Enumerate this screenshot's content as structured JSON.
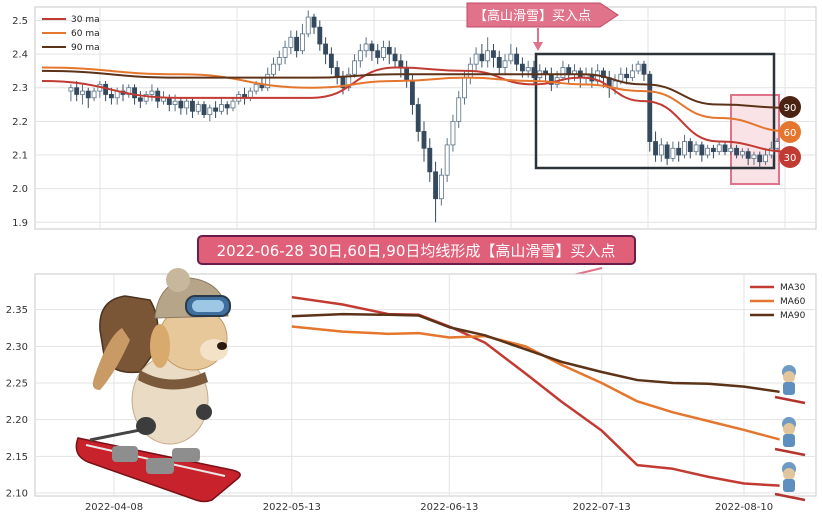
{
  "annotations": {
    "top_arrow_label": "【高山滑雪】买入点",
    "banner": "2022-06-28 30日,60日,90日均线形成【高山滑雪】买入点",
    "badges": [
      "90",
      "60",
      "30"
    ]
  },
  "colors": {
    "ma30": "#c23b33",
    "ma60": "#e5762d",
    "ma90": "#5c3318",
    "candle": "#34495e",
    "box": "#2c3338",
    "highlight_fill": "#f7d9de",
    "highlight_edge": "#e0728a",
    "banner_fill": "#e0607a",
    "banner_edge": "#6a1d4a",
    "badge90": "#4a2313",
    "badge60": "#e5762d",
    "badge30": "#c23b33"
  },
  "chart_data": [
    {
      "type": "candlestick",
      "y_ticks": [
        "1.9",
        "2.0",
        "2.1",
        "2.2",
        "2.3",
        "2.4",
        "2.5"
      ],
      "ylim": [
        1.88,
        2.54
      ],
      "grid": true,
      "legend": {
        "position": "top-left",
        "entries": [
          "30 ma",
          "60 ma",
          "90 ma"
        ]
      },
      "x_start": "2022-03-01",
      "x_end": "2022-08-17",
      "candles": [
        [
          2.29,
          2.3,
          2.26,
          2.31
        ],
        [
          2.3,
          2.28,
          2.26,
          2.32
        ],
        [
          2.28,
          2.29,
          2.25,
          2.31
        ],
        [
          2.29,
          2.27,
          2.24,
          2.3
        ],
        [
          2.27,
          2.29,
          2.26,
          2.3
        ],
        [
          2.29,
          2.31,
          2.27,
          2.32
        ],
        [
          2.31,
          2.28,
          2.26,
          2.32
        ],
        [
          2.28,
          2.27,
          2.25,
          2.3
        ],
        [
          2.27,
          2.29,
          2.25,
          2.3
        ],
        [
          2.29,
          2.28,
          2.26,
          2.31
        ],
        [
          2.28,
          2.3,
          2.27,
          2.31
        ],
        [
          2.3,
          2.27,
          2.25,
          2.31
        ],
        [
          2.27,
          2.26,
          2.24,
          2.29
        ],
        [
          2.26,
          2.28,
          2.25,
          2.29
        ],
        [
          2.28,
          2.29,
          2.26,
          2.31
        ],
        [
          2.29,
          2.26,
          2.24,
          2.3
        ],
        [
          2.26,
          2.27,
          2.25,
          2.29
        ],
        [
          2.27,
          2.25,
          2.23,
          2.28
        ],
        [
          2.25,
          2.26,
          2.23,
          2.28
        ],
        [
          2.26,
          2.24,
          2.22,
          2.27
        ],
        [
          2.24,
          2.26,
          2.22,
          2.27
        ],
        [
          2.26,
          2.23,
          2.21,
          2.27
        ],
        [
          2.23,
          2.25,
          2.22,
          2.26
        ],
        [
          2.25,
          2.22,
          2.21,
          2.26
        ],
        [
          2.22,
          2.24,
          2.2,
          2.25
        ],
        [
          2.24,
          2.23,
          2.21,
          2.26
        ],
        [
          2.23,
          2.25,
          2.22,
          2.27
        ],
        [
          2.25,
          2.24,
          2.22,
          2.26
        ],
        [
          2.24,
          2.26,
          2.23,
          2.27
        ],
        [
          2.26,
          2.28,
          2.25,
          2.29
        ],
        [
          2.28,
          2.27,
          2.25,
          2.3
        ],
        [
          2.27,
          2.29,
          2.26,
          2.3
        ],
        [
          2.29,
          2.31,
          2.28,
          2.32
        ],
        [
          2.31,
          2.3,
          2.29,
          2.33
        ],
        [
          2.3,
          2.34,
          2.29,
          2.36
        ],
        [
          2.34,
          2.37,
          2.33,
          2.39
        ],
        [
          2.37,
          2.39,
          2.35,
          2.41
        ],
        [
          2.39,
          2.42,
          2.37,
          2.44
        ],
        [
          2.42,
          2.45,
          2.4,
          2.47
        ],
        [
          2.45,
          2.41,
          2.39,
          2.47
        ],
        [
          2.41,
          2.46,
          2.4,
          2.49
        ],
        [
          2.46,
          2.51,
          2.45,
          2.53
        ],
        [
          2.51,
          2.48,
          2.46,
          2.52
        ],
        [
          2.48,
          2.43,
          2.41,
          2.5
        ],
        [
          2.43,
          2.4,
          2.37,
          2.45
        ],
        [
          2.4,
          2.36,
          2.34,
          2.42
        ],
        [
          2.36,
          2.33,
          2.31,
          2.38
        ],
        [
          2.33,
          2.3,
          2.28,
          2.35
        ],
        [
          2.3,
          2.34,
          2.29,
          2.36
        ],
        [
          2.34,
          2.38,
          2.33,
          2.4
        ],
        [
          2.38,
          2.41,
          2.36,
          2.43
        ],
        [
          2.41,
          2.43,
          2.39,
          2.45
        ],
        [
          2.43,
          2.41,
          2.38,
          2.44
        ],
        [
          2.41,
          2.39,
          2.37,
          2.43
        ],
        [
          2.39,
          2.42,
          2.38,
          2.44
        ],
        [
          2.42,
          2.4,
          2.37,
          2.44
        ],
        [
          2.4,
          2.38,
          2.36,
          2.42
        ],
        [
          2.38,
          2.36,
          2.33,
          2.4
        ],
        [
          2.36,
          2.32,
          2.3,
          2.38
        ],
        [
          2.32,
          2.25,
          2.22,
          2.34
        ],
        [
          2.25,
          2.17,
          2.14,
          2.27
        ],
        [
          2.17,
          2.12,
          2.08,
          2.2
        ],
        [
          2.12,
          2.05,
          2.02,
          2.15
        ],
        [
          2.05,
          1.97,
          1.9,
          2.08
        ],
        [
          1.97,
          2.04,
          1.95,
          2.06
        ],
        [
          2.04,
          2.13,
          2.02,
          2.15
        ],
        [
          2.13,
          2.2,
          2.11,
          2.22
        ],
        [
          2.2,
          2.27,
          2.18,
          2.29
        ],
        [
          2.27,
          2.33,
          2.25,
          2.35
        ],
        [
          2.33,
          2.37,
          2.31,
          2.39
        ],
        [
          2.37,
          2.4,
          2.35,
          2.42
        ],
        [
          2.4,
          2.38,
          2.36,
          2.43
        ],
        [
          2.38,
          2.41,
          2.36,
          2.45
        ],
        [
          2.41,
          2.39,
          2.36,
          2.43
        ],
        [
          2.39,
          2.36,
          2.34,
          2.41
        ],
        [
          2.36,
          2.38,
          2.34,
          2.4
        ],
        [
          2.38,
          2.4,
          2.37,
          2.43
        ],
        [
          2.4,
          2.37,
          2.35,
          2.42
        ],
        [
          2.37,
          2.35,
          2.33,
          2.39
        ],
        [
          2.35,
          2.36,
          2.33,
          2.38
        ],
        [
          2.36,
          2.33,
          2.31,
          2.38
        ],
        [
          2.33,
          2.35,
          2.32,
          2.37
        ],
        [
          2.35,
          2.34,
          2.32,
          2.36
        ],
        [
          2.34,
          2.31,
          2.29,
          2.36
        ],
        [
          2.31,
          2.33,
          2.3,
          2.35
        ],
        [
          2.33,
          2.36,
          2.32,
          2.38
        ],
        [
          2.36,
          2.34,
          2.31,
          2.37
        ],
        [
          2.34,
          2.35,
          2.32,
          2.37
        ],
        [
          2.35,
          2.33,
          2.3,
          2.36
        ],
        [
          2.33,
          2.34,
          2.31,
          2.36
        ],
        [
          2.34,
          2.32,
          2.3,
          2.36
        ],
        [
          2.32,
          2.35,
          2.31,
          2.37
        ],
        [
          2.35,
          2.33,
          2.3,
          2.36
        ],
        [
          2.33,
          2.3,
          2.27,
          2.35
        ],
        [
          2.3,
          2.32,
          2.28,
          2.34
        ],
        [
          2.32,
          2.34,
          2.31,
          2.36
        ],
        [
          2.34,
          2.33,
          2.31,
          2.36
        ],
        [
          2.33,
          2.35,
          2.32,
          2.37
        ],
        [
          2.35,
          2.37,
          2.34,
          2.38
        ],
        [
          2.37,
          2.34,
          2.32,
          2.38
        ],
        [
          2.34,
          2.14,
          2.11,
          2.35
        ],
        [
          2.14,
          2.1,
          2.08,
          2.17
        ],
        [
          2.1,
          2.13,
          2.08,
          2.15
        ],
        [
          2.13,
          2.09,
          2.07,
          2.14
        ],
        [
          2.09,
          2.12,
          2.08,
          2.14
        ],
        [
          2.12,
          2.1,
          2.08,
          2.14
        ],
        [
          2.1,
          2.14,
          2.09,
          2.16
        ],
        [
          2.14,
          2.11,
          2.09,
          2.15
        ],
        [
          2.11,
          2.13,
          2.1,
          2.14
        ],
        [
          2.13,
          2.1,
          2.08,
          2.14
        ],
        [
          2.1,
          2.12,
          2.09,
          2.13
        ],
        [
          2.12,
          2.11,
          2.09,
          2.13
        ],
        [
          2.11,
          2.13,
          2.1,
          2.14
        ],
        [
          2.13,
          2.11,
          2.1,
          2.14
        ],
        [
          2.11,
          2.12,
          2.1,
          2.13
        ],
        [
          2.12,
          2.1,
          2.09,
          2.13
        ],
        [
          2.1,
          2.11,
          2.09,
          2.12
        ],
        [
          2.11,
          2.09,
          2.07,
          2.12
        ],
        [
          2.09,
          2.1,
          2.07,
          2.11
        ],
        [
          2.1,
          2.08,
          2.06,
          2.11
        ],
        [
          2.08,
          2.1,
          2.07,
          2.12
        ],
        [
          2.1,
          2.12,
          2.09,
          2.14
        ],
        [
          2.12,
          2.14,
          2.11,
          2.15
        ]
      ],
      "series": [
        {
          "name": "30 ma",
          "x": [
            "2022-03-01",
            "2022-04-01",
            "2022-05-01",
            "2022-05-20",
            "2022-06-05",
            "2022-06-20",
            "2022-07-01",
            "2022-07-15",
            "2022-08-01",
            "2022-08-17"
          ],
          "values": [
            2.32,
            2.27,
            2.27,
            2.36,
            2.35,
            2.31,
            2.33,
            2.26,
            2.14,
            2.11
          ]
        },
        {
          "name": "60 ma",
          "x": [
            "2022-03-01",
            "2022-04-01",
            "2022-05-01",
            "2022-05-20",
            "2022-06-05",
            "2022-06-20",
            "2022-07-01",
            "2022-07-15",
            "2022-08-01",
            "2022-08-17"
          ],
          "values": [
            2.36,
            2.34,
            2.3,
            2.32,
            2.33,
            2.32,
            2.31,
            2.29,
            2.21,
            2.17
          ]
        },
        {
          "name": "90 ma",
          "x": [
            "2022-03-01",
            "2022-04-01",
            "2022-05-01",
            "2022-05-20",
            "2022-06-05",
            "2022-06-20",
            "2022-07-01",
            "2022-07-15",
            "2022-08-01",
            "2022-08-17"
          ],
          "values": [
            2.35,
            2.33,
            2.33,
            2.34,
            2.34,
            2.34,
            2.34,
            2.31,
            2.25,
            2.24
          ]
        }
      ]
    },
    {
      "type": "line",
      "x_ticks": [
        "2022-04-08",
        "2022-05-13",
        "2022-06-13",
        "2022-07-13",
        "2022-08-10"
      ],
      "y_ticks": [
        "2.10",
        "2.15",
        "2.20",
        "2.25",
        "2.30",
        "2.35"
      ],
      "ylim": [
        2.1,
        2.37
      ],
      "grid": true,
      "legend": {
        "position": "top-right",
        "entries": [
          "MA30",
          "MA60",
          "MA90"
        ]
      },
      "series": [
        {
          "name": "MA30",
          "x": [
            "2022-05-13",
            "2022-05-23",
            "2022-06-01",
            "2022-06-07",
            "2022-06-13",
            "2022-06-20",
            "2022-06-28",
            "2022-07-05",
            "2022-07-13",
            "2022-07-20",
            "2022-07-27",
            "2022-08-03",
            "2022-08-10",
            "2022-08-17"
          ],
          "values": [
            2.367,
            2.357,
            2.344,
            2.343,
            2.327,
            2.305,
            2.263,
            2.225,
            2.185,
            2.138,
            2.133,
            2.122,
            2.113,
            2.11
          ]
        },
        {
          "name": "MA60",
          "x": [
            "2022-05-13",
            "2022-05-23",
            "2022-06-01",
            "2022-06-07",
            "2022-06-13",
            "2022-06-20",
            "2022-06-28",
            "2022-07-05",
            "2022-07-13",
            "2022-07-20",
            "2022-07-27",
            "2022-08-03",
            "2022-08-10",
            "2022-08-17"
          ],
          "values": [
            2.327,
            2.32,
            2.317,
            2.318,
            2.312,
            2.314,
            2.3,
            2.275,
            2.25,
            2.225,
            2.21,
            2.198,
            2.186,
            2.173
          ]
        },
        {
          "name": "MA90",
          "x": [
            "2022-05-13",
            "2022-05-23",
            "2022-06-01",
            "2022-06-07",
            "2022-06-13",
            "2022-06-20",
            "2022-06-28",
            "2022-07-05",
            "2022-07-13",
            "2022-07-20",
            "2022-07-27",
            "2022-08-03",
            "2022-08-10",
            "2022-08-17"
          ],
          "values": [
            2.341,
            2.344,
            2.343,
            2.342,
            2.326,
            2.315,
            2.296,
            2.279,
            2.265,
            2.254,
            2.25,
            2.249,
            2.245,
            2.238
          ]
        }
      ]
    }
  ]
}
